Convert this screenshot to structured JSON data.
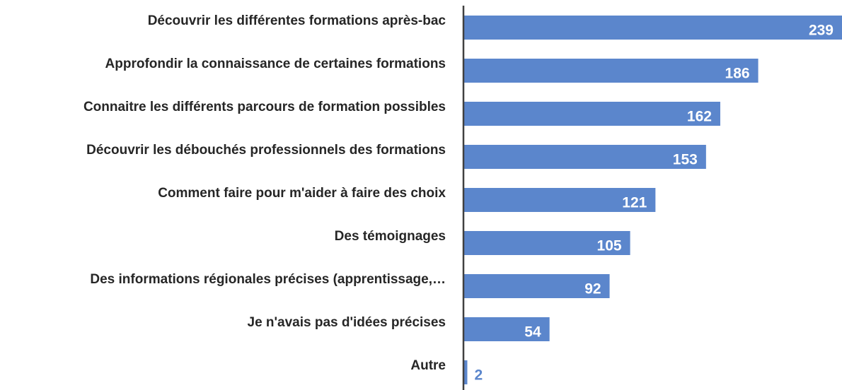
{
  "chart_data": {
    "type": "bar",
    "orientation": "horizontal",
    "categories": [
      "Découvrir les différentes formations après-bac",
      "Approfondir la connaissance de certaines formations",
      "Connaitre les différents parcours de formation possibles",
      "Découvrir les débouchés professionnels des formations",
      "Comment faire pour m'aider à faire des choix",
      "Des témoignages",
      "Des informations régionales précises (apprentissage,…",
      "Je n'avais pas d'idées précises",
      "Autre"
    ],
    "values": [
      239,
      186,
      162,
      153,
      121,
      105,
      92,
      54,
      2
    ],
    "color": "#5b86cc"
  }
}
